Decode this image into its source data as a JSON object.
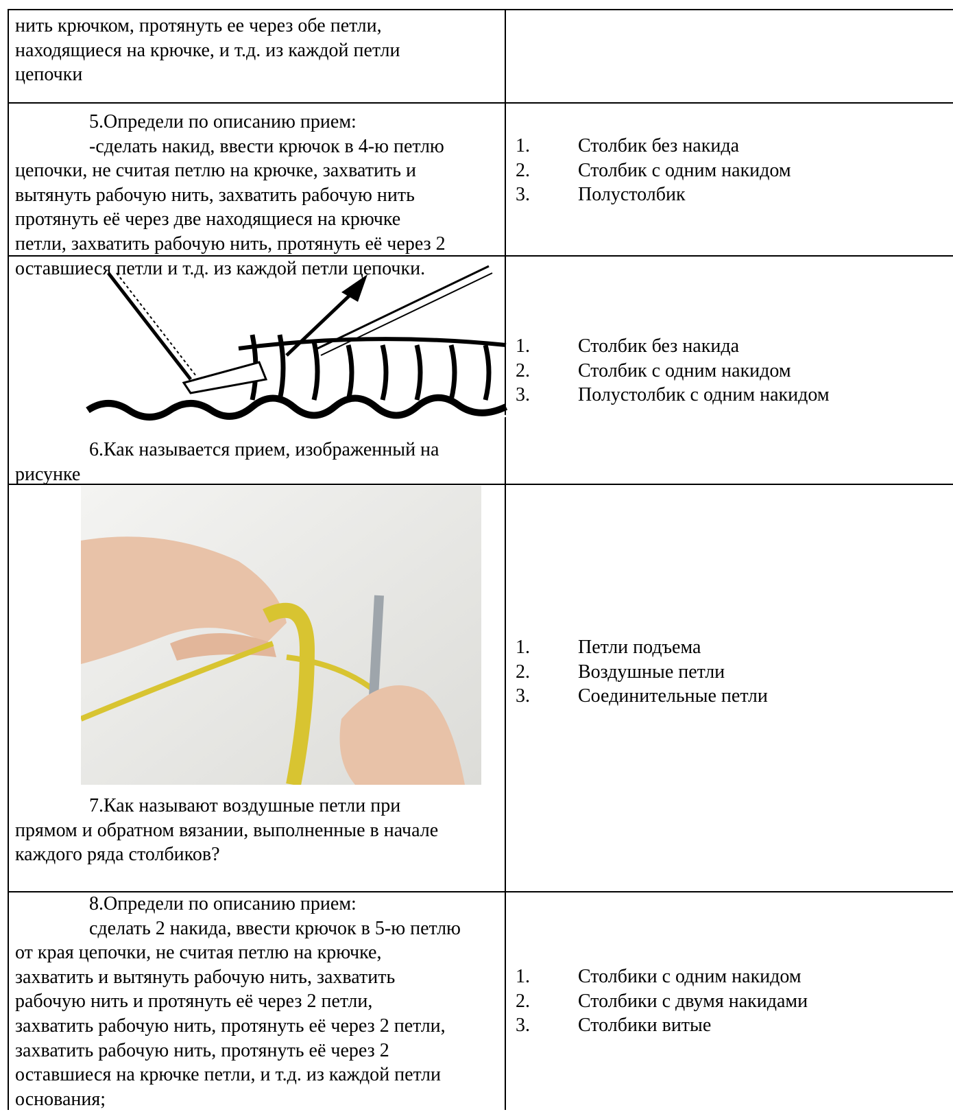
{
  "table": {
    "rows": [
      {
        "left": [
          "нить крючком, протянуть ее через обе петли,",
          "находящиеся на крючке, и т.д. из каждой петли",
          "цепочки"
        ]
      },
      {
        "left": [
          "5.Определи по описанию прием:",
          "-сделать накид, ввести крючок в 4-ю петлю",
          "цепочки, не считая петлю на крючке, захватить и",
          "вытянуть рабочую нить, захватить рабочую нить",
          "протянуть её через две находящиеся на крючке",
          "петли, захватить рабочую нить, протянуть её через 2",
          "оставшиеся петли и т.д. из каждой петли цепочки."
        ],
        "options": [
          {
            "number": "1.",
            "text": "Столбик без накида"
          },
          {
            "number": "2.",
            "text": "Столбик с одним накидом"
          },
          {
            "number": "3.",
            "text": "Полустолбик"
          }
        ]
      },
      {
        "left": [
          "6.Как называется прием, изображенный на",
          "рисунке"
        ],
        "options": [
          {
            "number": "1.",
            "text": "Столбик без накида"
          },
          {
            "number": "2.",
            "text": "Столбик с одним накидом"
          },
          {
            "number": "3.",
            "text": "Полустолбик с одним накидом"
          }
        ]
      },
      {
        "left": [
          "7.Как называют воздушные петли при",
          "прямом и обратном вязании, выполненные в начале",
          "каждого ряда столбиков?"
        ],
        "options": [
          {
            "number": "1.",
            "text": "Петли подъема"
          },
          {
            "number": "2.",
            "text": "Воздушные петли"
          },
          {
            "number": "3.",
            "text": "Соединительные петли"
          }
        ]
      },
      {
        "left": [
          "8.Определи по описанию прием:",
          "сделать 2 накида, ввести крючок в 5-ю петлю",
          "от края цепочки, не считая петлю на крючке,",
          "захватить и вытянуть рабочую нить, захватить",
          "рабочую нить и протянуть её через 2 петли,",
          "захватить рабочую нить, протянуть её через 2 петли,",
          "захватить рабочую нить, протянуть её через 2",
          "оставшиеся на крючке петли, и т.д. из каждой петли",
          "основания;"
        ],
        "options": [
          {
            "number": "1.",
            "text": "Столбики с одним накидом"
          },
          {
            "number": "2.",
            "text": "Столбики с двумя накидами"
          },
          {
            "number": "3.",
            "text": "Столбики витые"
          }
        ]
      }
    ]
  }
}
